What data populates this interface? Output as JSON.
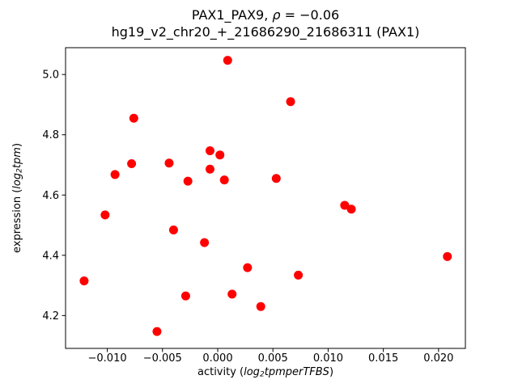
{
  "figure": {
    "title": {
      "line1_prefix": "PAX1_PAX9, ",
      "line1_rho": "ρ",
      "line1_suffix": " = −0.06",
      "line2": "hg19_v2_chr20_+_21686290_21686311 (PAX1)"
    },
    "xlabel": {
      "prefix": "activity (",
      "log": "log",
      "sub": "2",
      "rest": "tpmperTFBS",
      "suffix": ")"
    },
    "ylabel": {
      "prefix": "expression (",
      "log": "log",
      "sub": "2",
      "rest": "tpm",
      "suffix": ")"
    }
  },
  "chart_data": {
    "type": "scatter",
    "title": "PAX1_PAX9, ρ = −0.06\nhg19_v2_chr20_+_21686290_21686311 (PAX1)",
    "xlabel": "activity (log2 tpm per TFBS)",
    "ylabel": "expression (log2 tpm)",
    "marker_color": "#ff0000",
    "marker_radius_px": 5.5,
    "grid": false,
    "legend": null,
    "xlim": [
      -0.01378,
      0.02243
    ],
    "ylim": [
      4.091,
      5.089
    ],
    "xticks": [
      -0.01,
      -0.005,
      0.0,
      0.005,
      0.01,
      0.015,
      0.02
    ],
    "xtick_labels": [
      "−0.010",
      "−0.005",
      "0.000",
      "0.005",
      "0.010",
      "0.015",
      "0.020"
    ],
    "yticks": [
      4.2,
      4.4,
      4.6,
      4.8,
      5.0
    ],
    "ytick_labels": [
      "4.2",
      "4.4",
      "4.6",
      "4.8",
      "5.0"
    ],
    "points": [
      [
        0.0009,
        5.047
      ],
      [
        0.0066,
        4.91
      ],
      [
        -0.0076,
        4.855
      ],
      [
        -0.0007,
        4.747
      ],
      [
        0.0002,
        4.733
      ],
      [
        -0.0078,
        4.704
      ],
      [
        -0.0044,
        4.706
      ],
      [
        -0.0007,
        4.686
      ],
      [
        -0.0093,
        4.668
      ],
      [
        -0.0027,
        4.646
      ],
      [
        0.0006,
        4.65
      ],
      [
        0.0053,
        4.655
      ],
      [
        -0.0102,
        4.534
      ],
      [
        -0.004,
        4.484
      ],
      [
        -0.0012,
        4.442
      ],
      [
        0.0115,
        4.566
      ],
      [
        0.0121,
        4.553
      ],
      [
        0.0208,
        4.396
      ],
      [
        0.0073,
        4.334
      ],
      [
        0.0027,
        4.359
      ],
      [
        -0.0121,
        4.315
      ],
      [
        -0.0029,
        4.265
      ],
      [
        0.0013,
        4.271
      ],
      [
        0.0039,
        4.23
      ],
      [
        -0.0055,
        4.147
      ]
    ]
  }
}
